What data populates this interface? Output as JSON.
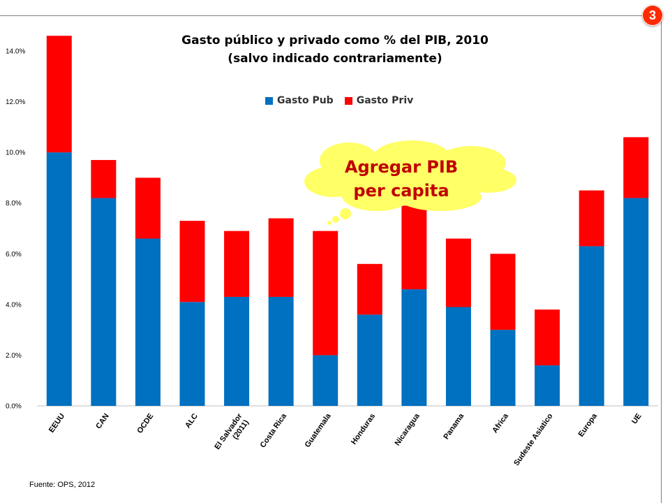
{
  "badge": "3",
  "source": "Fuente: OPS, 2012",
  "callout": {
    "line1": "Agregar PIB",
    "line2": "per capita"
  },
  "colors": {
    "gasto_pub": "#0070c0",
    "gasto_priv": "#ff0000",
    "cloud": "#ffff66",
    "badge": "#ff2a00",
    "callout_text": "#c00000"
  },
  "chart_data": {
    "type": "bar",
    "stacked": true,
    "title": "Gasto público y privado como % del PIB, 2010",
    "subtitle": "(salvo indicado contrariamente)",
    "categories": [
      "EEUU",
      "CAN",
      "OCDE",
      "ALC",
      "El Salvador (2011)",
      "Costa Rica",
      "Guatemala",
      "Honduras",
      "Nicaragua",
      "Panama",
      "Africa",
      "Sudeste Asiatico",
      "Europa",
      "UE"
    ],
    "category_lines": [
      [
        "EEUU"
      ],
      [
        "CAN"
      ],
      [
        "OCDE"
      ],
      [
        "ALC"
      ],
      [
        "El Salvador",
        "(2011)"
      ],
      [
        "Costa Rica"
      ],
      [
        "Guatemala"
      ],
      [
        "Honduras"
      ],
      [
        "Nicaragua"
      ],
      [
        "Panama"
      ],
      [
        "Africa"
      ],
      [
        "Sudeste Asiatico"
      ],
      [
        "Europa"
      ],
      [
        "UE"
      ]
    ],
    "series": [
      {
        "name": "Gasto Pub",
        "color": "#0070c0",
        "values": [
          10.0,
          8.2,
          6.6,
          4.1,
          4.3,
          4.3,
          2.0,
          3.6,
          4.6,
          3.9,
          3.0,
          1.6,
          6.3,
          8.2
        ]
      },
      {
        "name": "Gasto Priv",
        "color": "#ff0000",
        "values": [
          4.6,
          1.5,
          2.4,
          3.2,
          2.6,
          3.1,
          4.9,
          2.0,
          3.3,
          2.7,
          3.0,
          2.2,
          2.2,
          2.4
        ]
      }
    ],
    "ylim": [
      0,
      14
    ],
    "yticks": [
      "0.0%",
      "2.0%",
      "4.0%",
      "6.0%",
      "8.0%",
      "10.0%",
      "12.0%",
      "14.0%"
    ],
    "ytick_values": [
      0,
      2,
      4,
      6,
      8,
      10,
      12,
      14
    ],
    "grid": false,
    "legend_position": "top"
  }
}
